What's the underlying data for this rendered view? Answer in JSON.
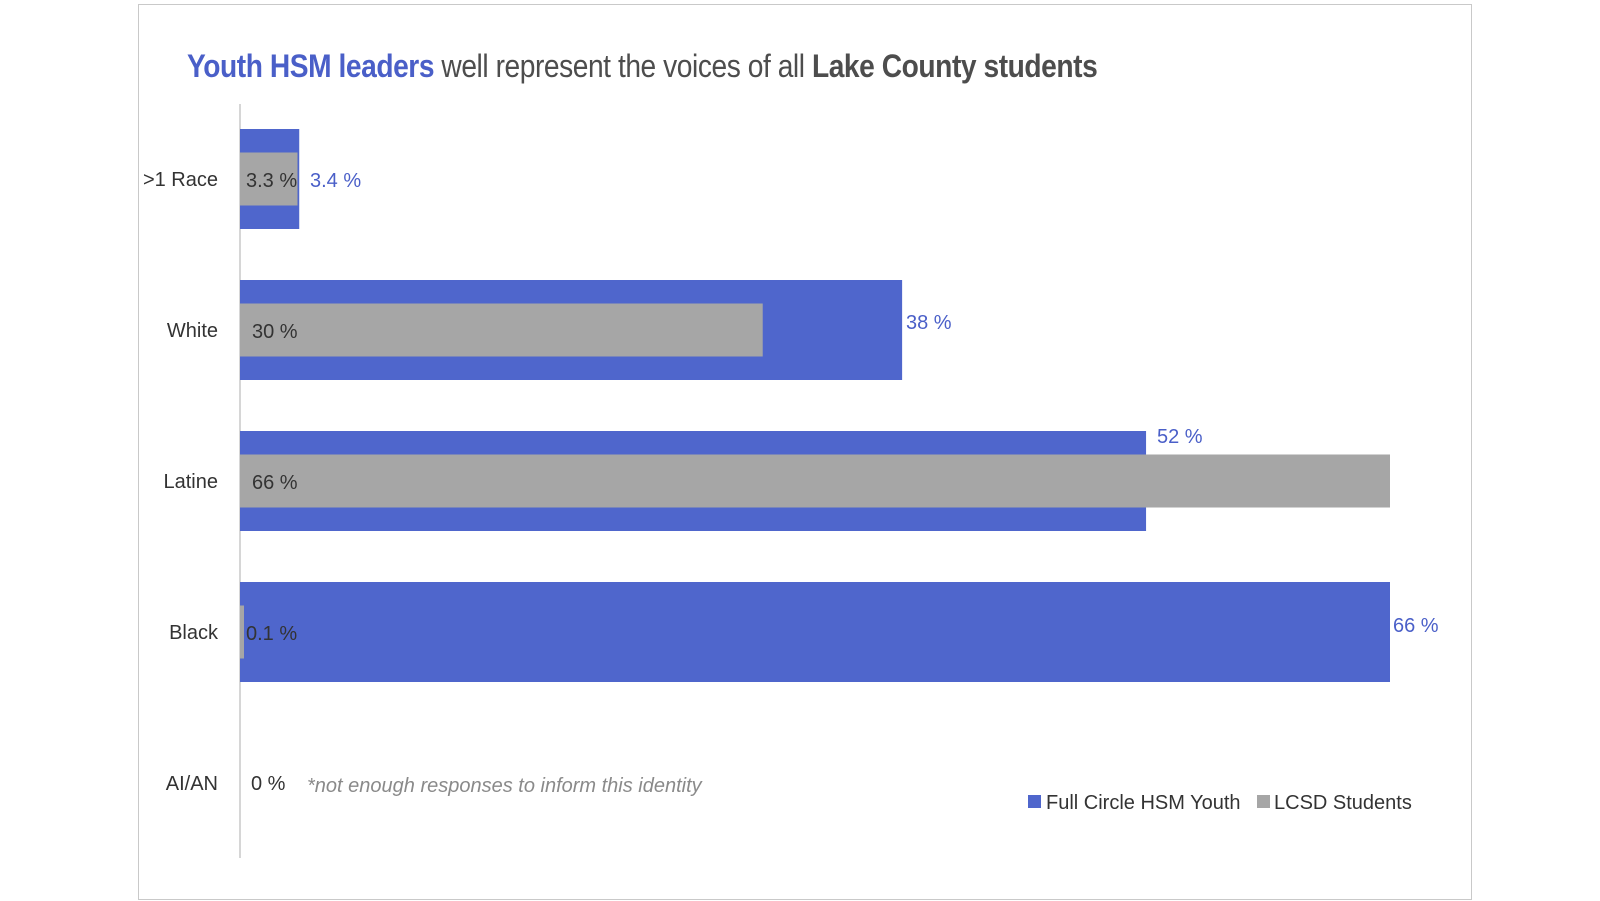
{
  "title": {
    "highlight": "Youth HSM leaders",
    "middle": "well represent the voices of all",
    "bold_tail": "Lake County students"
  },
  "chart_data": {
    "type": "bar",
    "orientation": "horizontal",
    "categories": [
      ">1 Race",
      "White",
      "Latine",
      "Black",
      "AI/AN"
    ],
    "series": [
      {
        "name": "Full Circle HSM Youth",
        "color": "#4f66cc",
        "values": [
          3.4,
          38,
          52,
          66,
          0
        ],
        "labels": [
          "3.4 %",
          "38 %",
          "52 %",
          "66 %",
          "0 %"
        ]
      },
      {
        "name": "LCSD Students",
        "color": "#a6a6a6",
        "values": [
          3.3,
          30,
          66,
          0.1,
          0
        ],
        "labels": [
          "3.3 %",
          "30 %",
          "66 %",
          "0.1 %",
          ""
        ]
      }
    ],
    "xlim": [
      0,
      66
    ],
    "grid": false,
    "legend_position": "bottom-right",
    "annotation": "*not enough responses to inform this identity"
  }
}
